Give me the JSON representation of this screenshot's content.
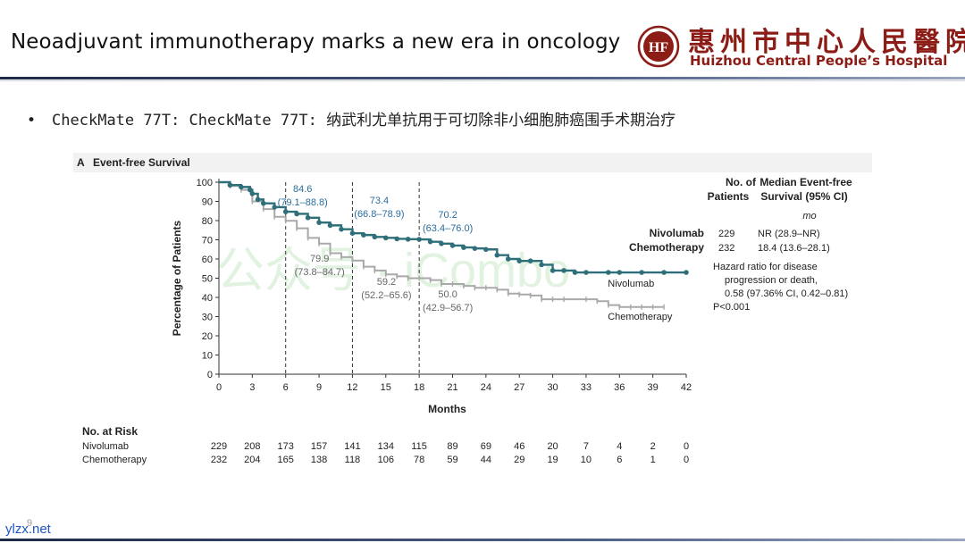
{
  "slide": {
    "title": "Neoadjuvant immunotherapy marks a new era in oncology",
    "hospital_cn": "惠州市中心人民醫院",
    "hospital_en": "Huizhou Central People’s Hospital",
    "logo_text": "HF",
    "bullet_text": "CheckMate 77T: CheckMate 77T: 纳武利尤单抗用于可切除非小细胞肺癌围手术期治疗",
    "page_number": "9",
    "site_watermark": "ylzx.net"
  },
  "chart_data": {
    "type": "line",
    "panel_label": "A",
    "title": "Event-free Survival",
    "xlabel": "Months",
    "ylabel": "Percentage of Patients",
    "xlim": [
      0,
      42
    ],
    "ylim": [
      0,
      100
    ],
    "x_ticks": [
      0,
      3,
      6,
      9,
      12,
      15,
      18,
      21,
      24,
      27,
      30,
      33,
      36,
      39,
      42
    ],
    "y_ticks": [
      0,
      10,
      20,
      30,
      40,
      50,
      60,
      70,
      80,
      90,
      100
    ],
    "reference_lines_x": [
      6,
      12,
      18
    ],
    "colors": {
      "nivolumab": "#2f6f7a",
      "chemotherapy": "#a9a9a9"
    },
    "series": [
      {
        "name": "Nivolumab",
        "points": [
          [
            0,
            100
          ],
          [
            1,
            98.5
          ],
          [
            2,
            97.5
          ],
          [
            2.8,
            96
          ],
          [
            3,
            94
          ],
          [
            3.5,
            91
          ],
          [
            4,
            89
          ],
          [
            5,
            87
          ],
          [
            6,
            84.6
          ],
          [
            7,
            83.5
          ],
          [
            8,
            81.5
          ],
          [
            9,
            79
          ],
          [
            10,
            77.5
          ],
          [
            11,
            75.5
          ],
          [
            12,
            73.4
          ],
          [
            13,
            72.5
          ],
          [
            14,
            71.5
          ],
          [
            15,
            71
          ],
          [
            16,
            70.5
          ],
          [
            17,
            70.3
          ],
          [
            18,
            70.2
          ],
          [
            19,
            69
          ],
          [
            20,
            68
          ],
          [
            21,
            67
          ],
          [
            22,
            66
          ],
          [
            23,
            65.5
          ],
          [
            24,
            65
          ],
          [
            25,
            62
          ],
          [
            26,
            60
          ],
          [
            27,
            59
          ],
          [
            28,
            59
          ],
          [
            29,
            57
          ],
          [
            30,
            54
          ],
          [
            31,
            54
          ],
          [
            32,
            53
          ],
          [
            33,
            53
          ],
          [
            35,
            53
          ],
          [
            36,
            53
          ],
          [
            38,
            53
          ],
          [
            40,
            53
          ],
          [
            42,
            53
          ]
        ]
      },
      {
        "name": "Chemotherapy",
        "points": [
          [
            0,
            100
          ],
          [
            1,
            98
          ],
          [
            2,
            96
          ],
          [
            3,
            90
          ],
          [
            4,
            86
          ],
          [
            5,
            82
          ],
          [
            6,
            79.9
          ],
          [
            7,
            76
          ],
          [
            8,
            71
          ],
          [
            9,
            68
          ],
          [
            10,
            63
          ],
          [
            11,
            61
          ],
          [
            12,
            59.2
          ],
          [
            13,
            56
          ],
          [
            14,
            54
          ],
          [
            15,
            52
          ],
          [
            16,
            51
          ],
          [
            17,
            50
          ],
          [
            18,
            50
          ],
          [
            19,
            49
          ],
          [
            20,
            47
          ],
          [
            21,
            47
          ],
          [
            22,
            46
          ],
          [
            23,
            45
          ],
          [
            24,
            45
          ],
          [
            25,
            44
          ],
          [
            26,
            42
          ],
          [
            27,
            41.5
          ],
          [
            28,
            41
          ],
          [
            29,
            39
          ],
          [
            30,
            39
          ],
          [
            31,
            39
          ],
          [
            33,
            39
          ],
          [
            34,
            38
          ],
          [
            35,
            36
          ],
          [
            36,
            35
          ],
          [
            37,
            35
          ],
          [
            38,
            35
          ],
          [
            39,
            35
          ],
          [
            40,
            35
          ]
        ]
      }
    ],
    "annotations": [
      {
        "x": 6,
        "nivo": "84.6",
        "nivo_ci": "(79.1–88.8)",
        "chemo": "79.9",
        "chemo_ci": "(73.8–84.7)"
      },
      {
        "x": 12,
        "nivo": "73.4",
        "nivo_ci": "(66.8–78.9)",
        "chemo": "59.2",
        "chemo_ci": "(52.2–65.6)"
      },
      {
        "x": 18,
        "nivo": "70.2",
        "nivo_ci": "(63.4–76.0)",
        "chemo": "50.0",
        "chemo_ci": "(42.9–56.7)"
      }
    ],
    "curve_labels": {
      "nivolumab": "Nivolumab",
      "chemotherapy": "Chemotherapy"
    },
    "table": {
      "header_no": "No. of Patients",
      "header_no_l1": "No. of",
      "header_no_l2": "Patients",
      "header_median_l1": "Median Event-free",
      "header_median_l2": "Survival (95% CI)",
      "unit": "mo",
      "rows": [
        {
          "group": "Nivolumab",
          "n": "229",
          "median": "NR (28.9–NR)"
        },
        {
          "group": "Chemotherapy",
          "n": "232",
          "median": "18.4 (13.6–28.1)"
        }
      ]
    },
    "hazard_text": [
      "Hazard ratio for disease",
      "progression or death,",
      "0.58 (97.36% CI, 0.42–0.81)",
      "P<0.001"
    ],
    "at_risk": {
      "title": "No. at Risk",
      "rows": [
        {
          "group": "Nivolumab",
          "values": [
            "229",
            "208",
            "173",
            "157",
            "141",
            "134",
            "115",
            "89",
            "69",
            "46",
            "20",
            "7",
            "4",
            "2",
            "0"
          ]
        },
        {
          "group": "Chemotherapy",
          "values": [
            "232",
            "204",
            "165",
            "138",
            "118",
            "106",
            "78",
            "59",
            "44",
            "29",
            "19",
            "10",
            "6",
            "1",
            "0"
          ]
        }
      ]
    },
    "image_watermark": "公众号 · iCombo"
  }
}
